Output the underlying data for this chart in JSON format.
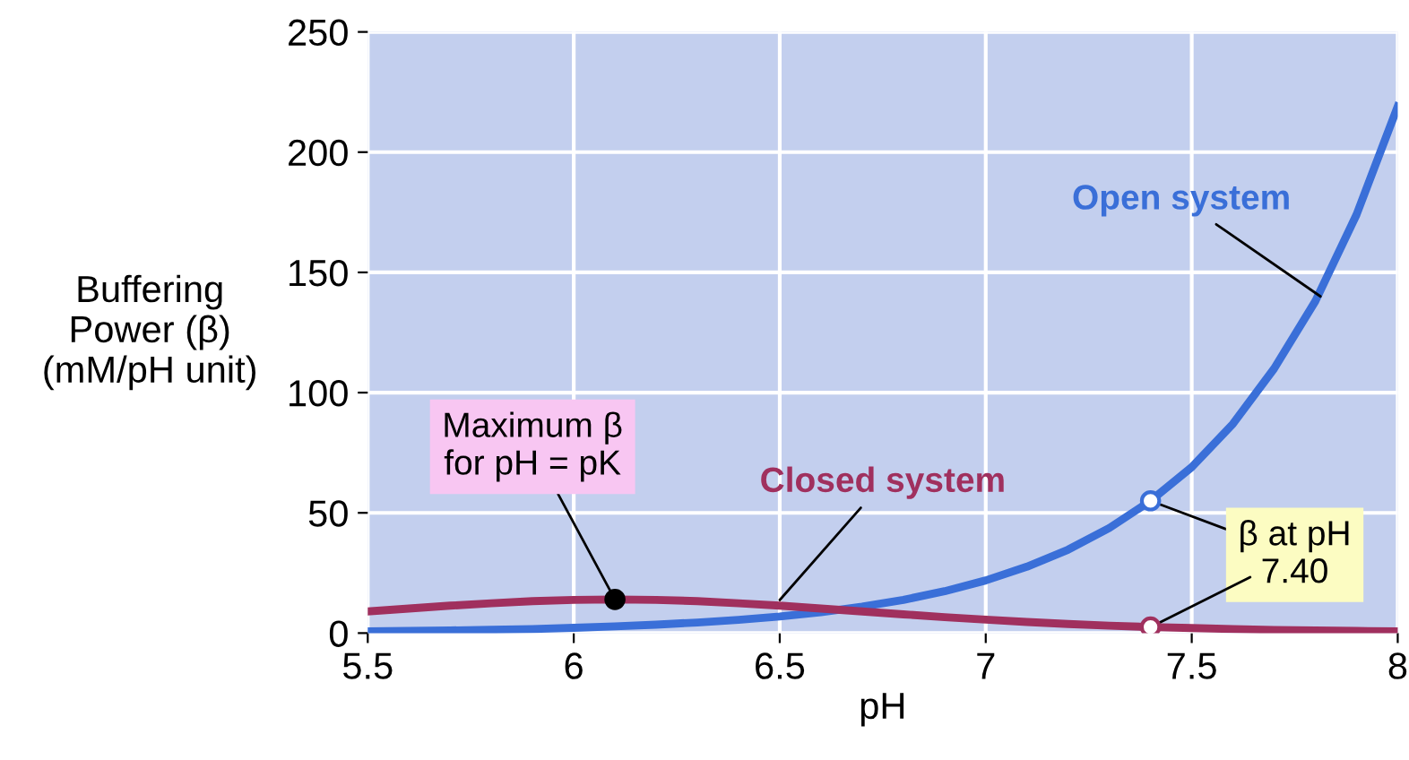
{
  "chart_data": {
    "type": "line",
    "xlabel": "pH",
    "ylabel": "Buffering\nPower (β)\n(mM/pH unit)",
    "x": [
      5.5,
      5.6,
      5.7,
      5.8,
      5.9,
      6.0,
      6.1,
      6.2,
      6.3,
      6.4,
      6.5,
      6.6,
      6.7,
      6.8,
      6.9,
      7.0,
      7.1,
      7.2,
      7.3,
      7.4,
      7.5,
      7.6,
      7.7,
      7.8,
      7.9,
      8.0
    ],
    "series": [
      {
        "name": "Open system",
        "color": "#3a6fd8",
        "values": [
          0.7,
          0.9,
          1.1,
          1.4,
          1.7,
          2.2,
          2.8,
          3.5,
          4.4,
          5.5,
          6.9,
          8.7,
          11,
          13.8,
          17.4,
          21.9,
          27.6,
          34.7,
          43.7,
          55,
          69,
          87,
          110,
          138,
          174,
          219
        ]
      },
      {
        "name": "Closed system",
        "color": "#a0305e",
        "values": [
          9.0,
          10.2,
          11.4,
          12.4,
          13.3,
          13.8,
          14.0,
          13.8,
          13.3,
          12.4,
          11.4,
          10.2,
          9.0,
          7.8,
          6.6,
          5.6,
          4.6,
          3.8,
          3.1,
          2.5,
          2.1,
          1.7,
          1.3,
          1.1,
          0.9,
          0.7
        ]
      }
    ],
    "annotations": [
      {
        "text": "Maximum β\nfor pH = pK",
        "x": 6.1,
        "y": 14
      },
      {
        "text": "β at pH\n7.40",
        "x": 7.4,
        "y": 55
      }
    ],
    "xlim": [
      5.5,
      8
    ],
    "xticks": [
      5.5,
      6,
      6.5,
      7,
      7.5,
      8
    ],
    "ylim": [
      0,
      250
    ],
    "yticks": [
      0,
      50,
      100,
      150,
      200,
      250
    ],
    "grid": true,
    "legend": false,
    "marker": "none",
    "line_style": "solid"
  }
}
